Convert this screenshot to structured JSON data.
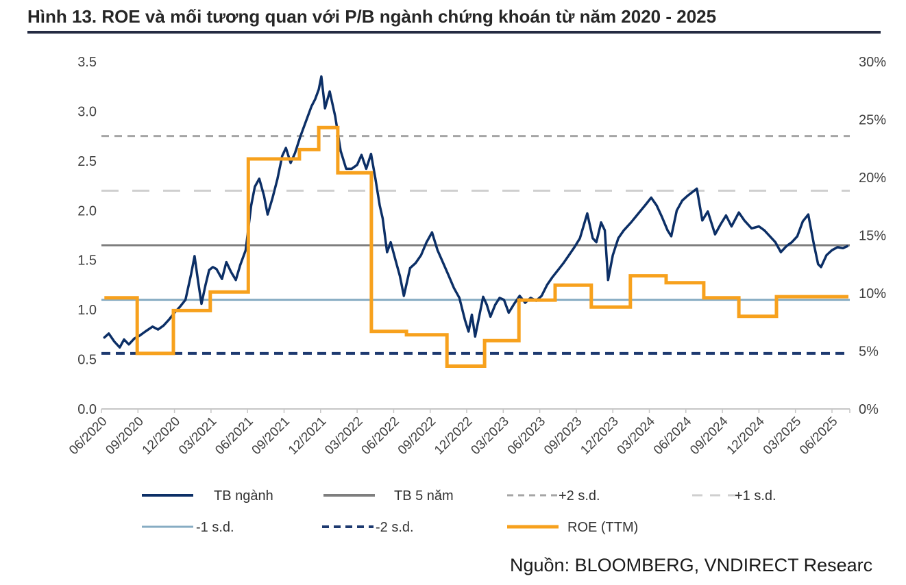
{
  "title": "Hình 13. ROE và mối tương quan với P/B ngành chứng khoán từ năm 2020 - 2025",
  "source": "Nguồn: BLOOMBERG, VNDIRECT Researc",
  "colors": {
    "pb_line": "#0c2f66",
    "roe_line": "#f7a11d",
    "mean_line": "#7e7e7e",
    "plus2sd": "#a5a5a5",
    "plus1sd": "#cfcfcf",
    "minus1sd": "#87acc3",
    "minus2sd": "#1e3a70",
    "axis": "#c6c6c6",
    "tick_text": "#3f3f3f",
    "legend_text": "#333333"
  },
  "chart_data": {
    "type": "line",
    "title": "ROE vs P/B ngành chứng khoán 2020-2025",
    "legend_position": "bottom",
    "grid": false,
    "left_axis": {
      "range": [
        0,
        3.5
      ],
      "ticks": [
        {
          "value": 0.0,
          "label": "0.0"
        },
        {
          "value": 0.5,
          "label": "0.5"
        },
        {
          "value": 1.0,
          "label": "1.0"
        },
        {
          "value": 1.5,
          "label": "1.5"
        },
        {
          "value": 2.0,
          "label": "2.0"
        },
        {
          "value": 2.5,
          "label": "2.5"
        },
        {
          "value": 3.0,
          "label": "3.0"
        },
        {
          "value": 3.5,
          "label": "3.5"
        }
      ]
    },
    "right_axis": {
      "range": [
        0,
        30
      ],
      "ticks": [
        {
          "value": 0,
          "label": "0%"
        },
        {
          "value": 5,
          "label": "5%"
        },
        {
          "value": 10,
          "label": "10%"
        },
        {
          "value": 15,
          "label": "15%"
        },
        {
          "value": 20,
          "label": "20%"
        },
        {
          "value": 25,
          "label": "25%"
        },
        {
          "value": 30,
          "label": "30%"
        }
      ]
    },
    "x_tick_labels": [
      "06/2020",
      "09/2020",
      "12/2020",
      "03/2021",
      "06/2021",
      "09/2021",
      "12/2021",
      "03/2022",
      "06/2022",
      "09/2022",
      "12/2022",
      "03/2023",
      "06/2023",
      "09/2023",
      "12/2023",
      "03/2024",
      "06/2024",
      "09/2024",
      "12/2024",
      "03/2025",
      "06/2025"
    ],
    "reference_lines": [
      {
        "name": "+2 s.d.",
        "value": 2.75,
        "color": "#a5a5a5",
        "width": 3,
        "dash": "11 8"
      },
      {
        "name": "+1 s.d.",
        "value": 2.2,
        "color": "#cfcfcf",
        "width": 3,
        "dash": "25 20"
      },
      {
        "name": "TB 5 năm",
        "value": 1.65,
        "color": "#7e7e7e",
        "width": 3,
        "dash": null
      },
      {
        "name": "-1 s.d.",
        "value": 1.1,
        "color": "#87acc3",
        "width": 3,
        "dash": null
      },
      {
        "name": "-2 s.d.",
        "value": 0.56,
        "color": "#1e3a70",
        "width": 4,
        "dash": "13 8"
      }
    ],
    "series_pb": {
      "name": "TB ngành",
      "axis": "left",
      "color": "#0c2f66",
      "width": 3.5,
      "points_q_pb": [
        [
          0.08,
          0.72
        ],
        [
          0.2,
          0.76
        ],
        [
          0.35,
          0.68
        ],
        [
          0.5,
          0.62
        ],
        [
          0.62,
          0.7
        ],
        [
          0.75,
          0.65
        ],
        [
          0.9,
          0.71
        ],
        [
          1.05,
          0.74
        ],
        [
          1.2,
          0.78
        ],
        [
          1.4,
          0.83
        ],
        [
          1.55,
          0.8
        ],
        [
          1.7,
          0.84
        ],
        [
          1.85,
          0.9
        ],
        [
          2.0,
          0.97
        ],
        [
          2.15,
          1.03
        ],
        [
          2.3,
          1.1
        ],
        [
          2.45,
          1.35
        ],
        [
          2.55,
          1.54
        ],
        [
          2.65,
          1.28
        ],
        [
          2.74,
          1.06
        ],
        [
          2.85,
          1.25
        ],
        [
          2.95,
          1.4
        ],
        [
          3.05,
          1.43
        ],
        [
          3.15,
          1.41
        ],
        [
          3.3,
          1.31
        ],
        [
          3.42,
          1.48
        ],
        [
          3.55,
          1.38
        ],
        [
          3.68,
          1.3
        ],
        [
          3.8,
          1.45
        ],
        [
          3.95,
          1.6
        ],
        [
          4.1,
          2.05
        ],
        [
          4.2,
          2.24
        ],
        [
          4.32,
          2.32
        ],
        [
          4.45,
          2.15
        ],
        [
          4.55,
          1.96
        ],
        [
          4.68,
          2.12
        ],
        [
          4.82,
          2.32
        ],
        [
          4.95,
          2.55
        ],
        [
          5.05,
          2.63
        ],
        [
          5.18,
          2.48
        ],
        [
          5.3,
          2.58
        ],
        [
          5.45,
          2.75
        ],
        [
          5.6,
          2.9
        ],
        [
          5.75,
          3.05
        ],
        [
          5.85,
          3.12
        ],
        [
          5.95,
          3.22
        ],
        [
          6.02,
          3.35
        ],
        [
          6.12,
          3.03
        ],
        [
          6.25,
          3.2
        ],
        [
          6.4,
          2.95
        ],
        [
          6.55,
          2.6
        ],
        [
          6.7,
          2.42
        ],
        [
          6.85,
          2.42
        ],
        [
          7.0,
          2.46
        ],
        [
          7.12,
          2.56
        ],
        [
          7.25,
          2.42
        ],
        [
          7.38,
          2.57
        ],
        [
          7.5,
          2.32
        ],
        [
          7.62,
          2.05
        ],
        [
          7.7,
          1.92
        ],
        [
          7.82,
          1.58
        ],
        [
          7.92,
          1.68
        ],
        [
          8.05,
          1.5
        ],
        [
          8.17,
          1.34
        ],
        [
          8.28,
          1.14
        ],
        [
          8.45,
          1.42
        ],
        [
          8.6,
          1.47
        ],
        [
          8.75,
          1.55
        ],
        [
          8.9,
          1.68
        ],
        [
          9.05,
          1.78
        ],
        [
          9.2,
          1.6
        ],
        [
          9.32,
          1.5
        ],
        [
          9.5,
          1.35
        ],
        [
          9.65,
          1.22
        ],
        [
          9.8,
          1.12
        ],
        [
          9.95,
          0.9
        ],
        [
          10.05,
          0.78
        ],
        [
          10.14,
          0.95
        ],
        [
          10.23,
          0.73
        ],
        [
          10.35,
          0.95
        ],
        [
          10.45,
          1.13
        ],
        [
          10.55,
          1.05
        ],
        [
          10.65,
          0.93
        ],
        [
          10.78,
          1.05
        ],
        [
          10.9,
          1.12
        ],
        [
          11.02,
          1.1
        ],
        [
          11.15,
          0.97
        ],
        [
          11.3,
          1.06
        ],
        [
          11.45,
          1.14
        ],
        [
          11.6,
          1.07
        ],
        [
          11.75,
          1.12
        ],
        [
          11.9,
          1.09
        ],
        [
          12.05,
          1.14
        ],
        [
          12.2,
          1.25
        ],
        [
          12.35,
          1.33
        ],
        [
          12.5,
          1.4
        ],
        [
          12.65,
          1.47
        ],
        [
          12.8,
          1.55
        ],
        [
          12.95,
          1.63
        ],
        [
          13.1,
          1.72
        ],
        [
          13.3,
          1.97
        ],
        [
          13.45,
          1.72
        ],
        [
          13.55,
          1.68
        ],
        [
          13.68,
          1.88
        ],
        [
          13.78,
          1.8
        ],
        [
          13.87,
          1.3
        ],
        [
          14.0,
          1.55
        ],
        [
          14.15,
          1.72
        ],
        [
          14.3,
          1.8
        ],
        [
          14.5,
          1.88
        ],
        [
          14.7,
          1.97
        ],
        [
          14.9,
          2.06
        ],
        [
          15.05,
          2.13
        ],
        [
          15.2,
          2.05
        ],
        [
          15.35,
          1.93
        ],
        [
          15.5,
          1.8
        ],
        [
          15.6,
          1.74
        ],
        [
          15.75,
          2.0
        ],
        [
          15.9,
          2.1
        ],
        [
          16.05,
          2.15
        ],
        [
          16.3,
          2.22
        ],
        [
          16.45,
          1.9
        ],
        [
          16.6,
          1.99
        ],
        [
          16.8,
          1.76
        ],
        [
          16.95,
          1.86
        ],
        [
          17.1,
          1.95
        ],
        [
          17.25,
          1.84
        ],
        [
          17.45,
          1.98
        ],
        [
          17.6,
          1.9
        ],
        [
          17.8,
          1.82
        ],
        [
          18.0,
          1.84
        ],
        [
          18.15,
          1.8
        ],
        [
          18.3,
          1.74
        ],
        [
          18.45,
          1.68
        ],
        [
          18.6,
          1.58
        ],
        [
          18.75,
          1.64
        ],
        [
          18.9,
          1.68
        ],
        [
          19.05,
          1.74
        ],
        [
          19.2,
          1.89
        ],
        [
          19.35,
          1.96
        ],
        [
          19.5,
          1.67
        ],
        [
          19.62,
          1.46
        ],
        [
          19.7,
          1.43
        ],
        [
          19.85,
          1.55
        ],
        [
          20.0,
          1.6
        ],
        [
          20.15,
          1.63
        ],
        [
          20.3,
          1.62
        ],
        [
          20.42,
          1.64
        ]
      ]
    },
    "series_roe": {
      "name": "ROE (TTM)",
      "axis": "right",
      "color": "#f7a11d",
      "width": 5,
      "quarters": [
        "06/2020",
        "09/2020",
        "12/2020",
        "03/2021",
        "06/2021",
        "09/2021",
        "12/2021",
        "03/2022",
        "06/2022",
        "09/2022",
        "12/2022",
        "03/2023",
        "06/2023",
        "09/2023",
        "12/2023",
        "03/2024",
        "06/2024",
        "09/2024",
        "12/2024",
        "03/2025",
        "06/2025"
      ],
      "values_pct": [
        9.6,
        4.8,
        8.5,
        10.1,
        21.6,
        22.4,
        24.3,
        20.4,
        6.7,
        6.4,
        3.7,
        5.9,
        9.4,
        10.7,
        8.8,
        11.5,
        10.9,
        9.6,
        8.0,
        9.7,
        9.7
      ],
      "boundaries_q": [
        0.08,
        0.98,
        1.97,
        2.98,
        4.02,
        5.42,
        5.95,
        6.47,
        7.39,
        8.35,
        9.46,
        10.49,
        11.43,
        12.42,
        13.41,
        14.48,
        15.46,
        16.49,
        17.45,
        18.48,
        19.5
      ],
      "end_q": 20.45
    },
    "legend_rows": [
      [
        {
          "label": "TB ngành",
          "color": "#0c2f66",
          "width": 4,
          "dash": null
        },
        {
          "label": "TB 5 năm",
          "color": "#7e7e7e",
          "width": 4,
          "dash": null
        },
        {
          "label": "+2 s.d.",
          "color": "#a5a5a5",
          "width": 3,
          "dash": "9 7"
        },
        {
          "label": "+1 s.d.",
          "color": "#cfcfcf",
          "width": 3,
          "dash": "15 11"
        }
      ],
      [
        {
          "label": "-1 s.d.",
          "color": "#87acc3",
          "width": 3,
          "dash": null
        },
        {
          "label": "-2 s.d.",
          "color": "#1e3a70",
          "width": 4,
          "dash": "10 7"
        },
        {
          "label": "ROE (TTM)",
          "color": "#f7a11d",
          "width": 5,
          "dash": null
        }
      ]
    ]
  }
}
